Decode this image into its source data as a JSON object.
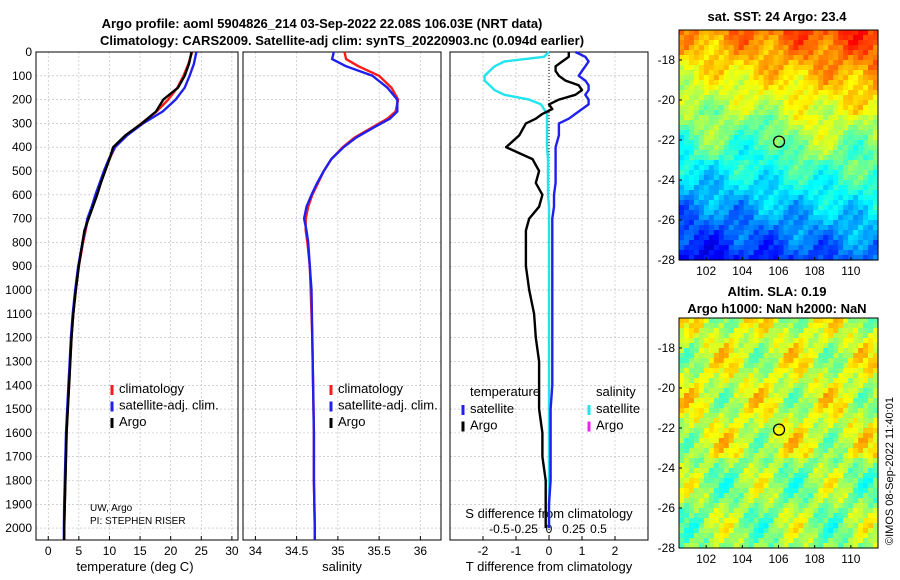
{
  "title_line1": "Argo profile: aoml 5904826_214 03-Sep-2022 22.08S  106.03E (NRT data)",
  "title_line2": "Climatology: CARS2009. Satellite-adj clim: synTS_20220903.nc (0.094d earlier)",
  "copyright": "©IMOS 08-Sep-2022 11:40:01",
  "info_text": [
    "UW, Argo",
    "PI: STEPHEN RISER"
  ],
  "colors": {
    "clim": "#ff1a1a",
    "sat": "#2020ee",
    "argo": "#000000",
    "sat_s": "#22e4ee",
    "argo_s": "#ee22ee"
  },
  "depth_ticks": [
    0,
    100,
    200,
    300,
    400,
    500,
    600,
    700,
    800,
    900,
    1000,
    1100,
    1200,
    1300,
    1400,
    1500,
    1600,
    1700,
    1800,
    1900,
    2000
  ],
  "chart_data": [
    {
      "type": "line",
      "name": "temperature",
      "xlabel": "temperature (deg C)",
      "ylabel": "depth",
      "xlim": [
        -2,
        31
      ],
      "ylim": [
        2050,
        0
      ],
      "xticks": [
        0,
        5,
        10,
        15,
        20,
        25,
        30
      ],
      "legend": [
        "climatology",
        "satellite-adj. clim.",
        "Argo"
      ],
      "depth": [
        0,
        50,
        100,
        150,
        200,
        250,
        300,
        350,
        400,
        450,
        500,
        550,
        600,
        650,
        700,
        750,
        800,
        900,
        1000,
        1100,
        1200,
        1300,
        1400,
        1500,
        1600,
        1700,
        1800,
        1900,
        2000,
        2050
      ],
      "series": [
        {
          "name": "climatology",
          "values": [
            23.5,
            22.9,
            22.1,
            21.1,
            19.6,
            17.7,
            15.2,
            12.8,
            10.9,
            10.0,
            9.2,
            8.5,
            7.8,
            7.2,
            6.5,
            6.1,
            5.7,
            5.0,
            4.5,
            4.1,
            3.8,
            3.6,
            3.4,
            3.2,
            3.0,
            2.9,
            2.8,
            2.7,
            2.6,
            2.6
          ]
        },
        {
          "name": "satellite-adj. clim.",
          "values": [
            24.2,
            23.8,
            23.1,
            22.3,
            20.8,
            18.7,
            15.5,
            12.9,
            10.9,
            9.9,
            9.1,
            8.4,
            7.7,
            7.1,
            6.4,
            6.0,
            5.6,
            4.9,
            4.4,
            4.0,
            3.7,
            3.5,
            3.3,
            3.1,
            2.9,
            2.8,
            2.7,
            2.6,
            2.55,
            2.55
          ]
        },
        {
          "name": "Argo",
          "values": [
            23.4,
            23.0,
            22.3,
            21.2,
            18.8,
            17.6,
            15.3,
            12.6,
            10.6,
            10.0,
            9.3,
            8.6,
            8.0,
            7.3,
            6.6,
            5.9,
            5.6,
            5.0,
            4.5,
            4.1,
            3.8,
            3.6,
            3.4,
            3.2,
            3.0,
            2.9,
            2.8,
            2.7,
            2.6,
            2.6
          ]
        }
      ]
    },
    {
      "type": "line",
      "name": "salinity",
      "xlabel": "salinity",
      "xlim": [
        33.85,
        36.25
      ],
      "ylim": [
        2050,
        0
      ],
      "xticks": [
        34,
        34.5,
        35,
        35.5,
        36
      ],
      "legend": [
        "climatology",
        "satellite-adj. clim.",
        "Argo"
      ],
      "depth": [
        0,
        30,
        60,
        100,
        150,
        200,
        250,
        280,
        320,
        360,
        400,
        450,
        500,
        550,
        600,
        650,
        700,
        750,
        800,
        900,
        1000,
        1200,
        1400,
        1600,
        1800,
        2000,
        2050
      ],
      "series": [
        {
          "name": "climatology",
          "values": [
            35.08,
            35.1,
            35.25,
            35.5,
            35.65,
            35.73,
            35.7,
            35.6,
            35.4,
            35.2,
            35.06,
            34.92,
            34.83,
            34.76,
            34.69,
            34.64,
            34.61,
            34.61,
            34.63,
            34.66,
            34.67,
            34.69,
            34.7,
            34.71,
            34.71,
            34.72,
            34.72
          ]
        },
        {
          "name": "satellite-adj. clim.",
          "values": [
            34.95,
            34.93,
            35.1,
            35.42,
            35.6,
            35.72,
            35.72,
            35.63,
            35.42,
            35.22,
            35.07,
            34.92,
            34.83,
            34.75,
            34.68,
            34.62,
            34.59,
            34.62,
            34.64,
            34.66,
            34.68,
            34.69,
            34.7,
            34.71,
            34.71,
            34.72,
            34.72
          ]
        },
        {
          "name": "Argo",
          "values": []
        }
      ]
    },
    {
      "type": "line",
      "name": "difference",
      "xlabel": "T difference from climatology",
      "xlabel2": "S difference from climatology",
      "xlim": [
        -3,
        3
      ],
      "ylim": [
        2050,
        0
      ],
      "xticks": [
        -2,
        -1,
        0,
        1,
        2
      ],
      "xticks_s": [
        "-0.5",
        "-0.25",
        "0",
        "0.25",
        "0.5"
      ],
      "legend_t_title": "temperature",
      "legend_s_title": "salinity",
      "legend_t": [
        "satellite",
        "Argo"
      ],
      "legend_s": [
        "satellite",
        "Argo"
      ],
      "depth": [
        0,
        20,
        40,
        60,
        80,
        100,
        120,
        140,
        160,
        180,
        200,
        220,
        240,
        260,
        280,
        300,
        350,
        400,
        450,
        500,
        550,
        600,
        650,
        700,
        750,
        800,
        900,
        1000,
        1100,
        1200,
        1300,
        1400,
        1500,
        1600,
        1700,
        1800,
        1900,
        2000
      ],
      "series": [
        {
          "name": "T satellite",
          "values": [
            0.8,
            1.1,
            1.2,
            1.1,
            1.0,
            0.9,
            1.1,
            1.2,
            1.2,
            1.1,
            1.2,
            1.2,
            1.0,
            0.8,
            0.6,
            0.3,
            0.3,
            0.2,
            0.2,
            0.2,
            0.2,
            0.15,
            0.15,
            0.1,
            0.1,
            0.1,
            0.1,
            0.1,
            0.1,
            0.1,
            0.1,
            0.1,
            0.05,
            0.05,
            0.05,
            0.05,
            0.0,
            0.0
          ]
        },
        {
          "name": "T Argo",
          "values": [
            0.6,
            0.6,
            0.4,
            0.2,
            0.2,
            0.3,
            0.5,
            0.9,
            1.0,
            0.8,
            0.3,
            0.0,
            0.1,
            -0.2,
            -0.4,
            -0.7,
            -0.9,
            -1.3,
            -0.5,
            -0.3,
            -0.4,
            -0.2,
            -0.3,
            -0.6,
            -0.7,
            -0.7,
            -0.7,
            -0.6,
            -0.45,
            -0.4,
            -0.3,
            -0.3,
            -0.3,
            -0.2,
            -0.2,
            -0.1,
            -0.1,
            -0.1
          ]
        },
        {
          "name": "S satellite",
          "values": [
            0.0,
            -0.05,
            -0.45,
            -0.55,
            -0.6,
            -0.65,
            -0.65,
            -0.6,
            -0.55,
            -0.45,
            -0.2,
            -0.08,
            -0.05,
            -0.02,
            -0.02,
            -0.02,
            -0.02,
            -0.02,
            -0.01,
            -0.01,
            -0.01,
            -0.01,
            0.0,
            0.0,
            0.0,
            0.0,
            0.0,
            0.0,
            0.0,
            0.0,
            0.0,
            0.0,
            0.0,
            0.0,
            0.0,
            0.0,
            0.0,
            0.0
          ]
        },
        {
          "name": "S Argo",
          "values": []
        }
      ]
    },
    {
      "type": "heatmap",
      "name": "sst_map",
      "title": "sat. SST: 24 Argo: 23.4",
      "xlim": [
        100.5,
        111.5
      ],
      "ylim": [
        -28,
        -16.5
      ],
      "xticks": [
        102,
        104,
        106,
        108,
        110
      ],
      "yticks": [
        -18,
        -20,
        -22,
        -24,
        -26,
        -28
      ],
      "marker": {
        "lon": 106.03,
        "lat": -22.08
      }
    },
    {
      "type": "heatmap",
      "name": "sla_map",
      "title": "Altim. SLA: 0.19",
      "subtitle": "Argo h1000: NaN h2000: NaN",
      "xlim": [
        100.5,
        111.5
      ],
      "ylim": [
        -28,
        -16.5
      ],
      "xticks": [
        102,
        104,
        106,
        108,
        110
      ],
      "yticks": [
        -18,
        -20,
        -22,
        -24,
        -26,
        -28
      ],
      "marker": {
        "lon": 106.03,
        "lat": -22.08
      }
    }
  ]
}
